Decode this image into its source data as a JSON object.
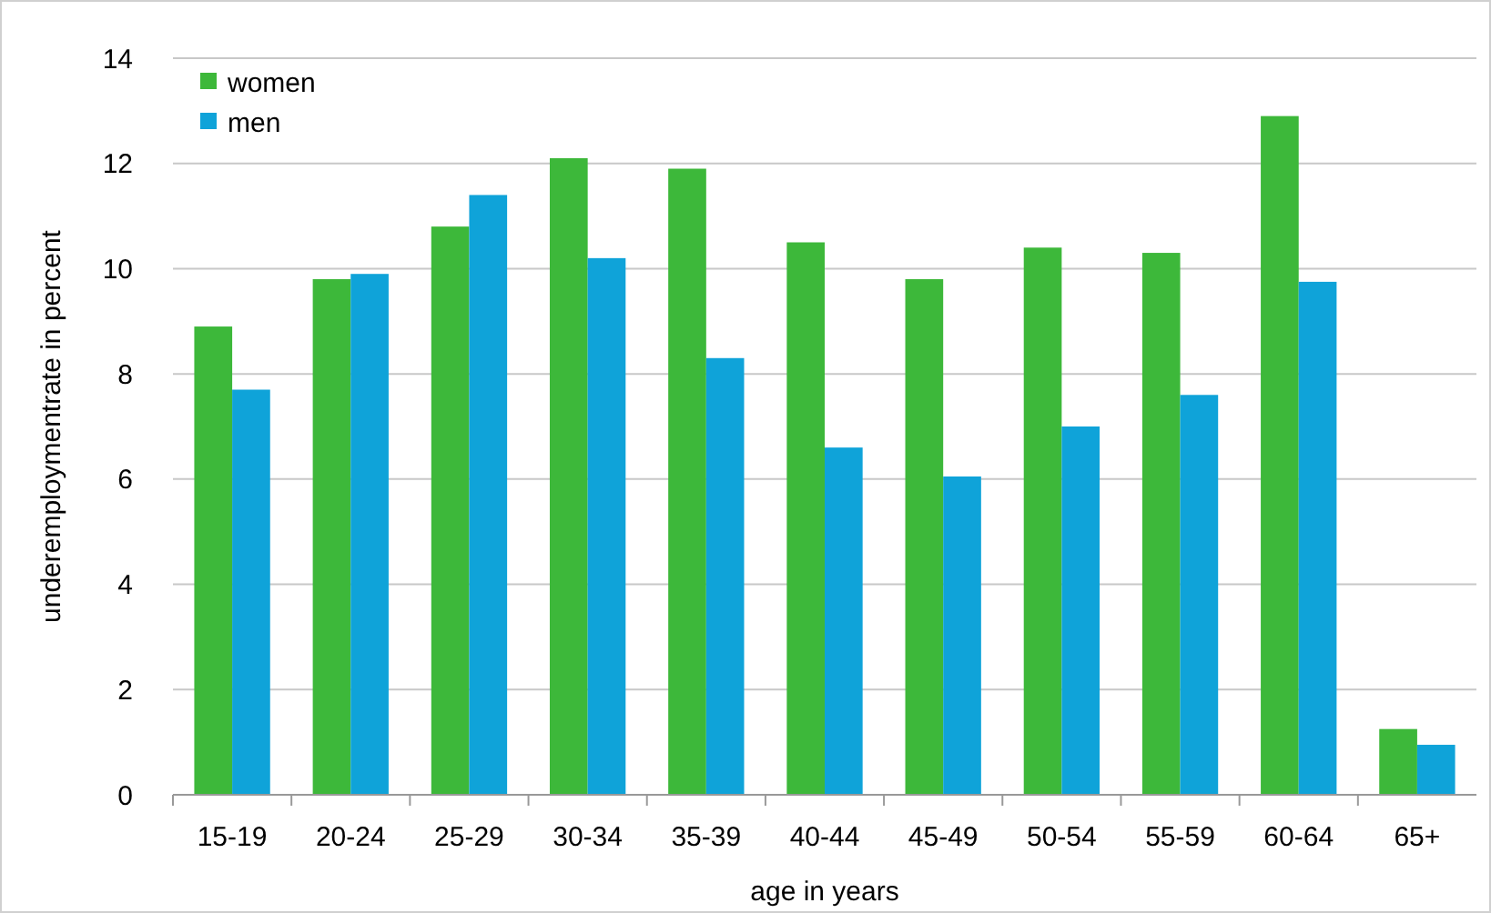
{
  "chart_data": {
    "type": "bar",
    "xlabel": "age in years",
    "ylabel": "underemploymentrate in percent",
    "categories": [
      "15-19",
      "20-24",
      "25-29",
      "30-34",
      "35-39",
      "40-44",
      "45-49",
      "50-54",
      "55-59",
      "60-64",
      "65+"
    ],
    "series": [
      {
        "name": "women",
        "color": "#3db83a",
        "values": [
          8.9,
          9.8,
          10.8,
          12.1,
          11.9,
          10.5,
          9.8,
          10.4,
          10.3,
          12.9,
          1.25
        ]
      },
      {
        "name": "men",
        "color": "#0fa3d9",
        "values": [
          7.7,
          9.9,
          11.4,
          10.2,
          8.3,
          6.6,
          6.05,
          7.0,
          7.6,
          9.75,
          0.95
        ]
      }
    ],
    "ylim": [
      0,
      14
    ],
    "yticks": [
      0,
      2,
      4,
      6,
      8,
      10,
      12,
      14
    ],
    "grid": "y",
    "legend": "top left"
  }
}
